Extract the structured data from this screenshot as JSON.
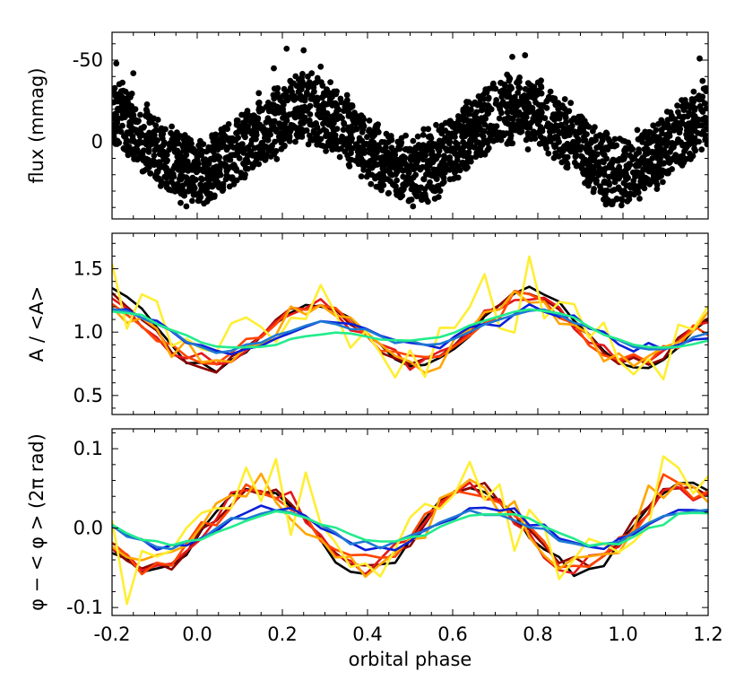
{
  "chart_data": [
    {
      "type": "scatter",
      "id": "flux",
      "ylabel": "flux (mmag)",
      "xlim": [
        -0.2,
        1.2
      ],
      "ylim": [
        -67,
        47
      ],
      "y_inverted": true,
      "yticks": [
        -50,
        0
      ],
      "ytick_labels": [
        "-50",
        "0"
      ],
      "model": {
        "description": "dense cloud of points following a double-wave (ellipsoidal-like) modulation",
        "mean_center_at_max": -20,
        "mean_center_at_min": 17,
        "maxima_phase": [
          0.25,
          0.75
        ],
        "band_half_width": 19,
        "outliers": [
          {
            "x": -0.19,
            "y": -48
          },
          {
            "x": 0.21,
            "y": -57
          },
          {
            "x": 0.25,
            "y": -56
          },
          {
            "x": 0.29,
            "y": -46
          },
          {
            "x": 0.74,
            "y": -52
          },
          {
            "x": 0.77,
            "y": -53
          },
          {
            "x": 1.18,
            "y": -51
          },
          {
            "x": -0.15,
            "y": -42
          },
          {
            "x": 0.18,
            "y": -45
          }
        ]
      }
    },
    {
      "type": "line",
      "id": "amplitude",
      "ylabel": "A / <A>",
      "xlim": [
        -0.2,
        1.2
      ],
      "ylim": [
        0.35,
        1.78
      ],
      "yticks": [
        0.5,
        1.0,
        1.5
      ],
      "ytick_labels": [
        "0.5",
        "1.0",
        "1.5"
      ],
      "series": [
        {
          "name": "black",
          "color": "#000000",
          "baseline": 1.0,
          "amp2": 0.28,
          "amp1": -0.05,
          "phase": 0.78,
          "noise": 0.02
        },
        {
          "name": "darkred",
          "color": "#8b0000",
          "baseline": 1.0,
          "amp2": 0.26,
          "amp1": -0.04,
          "phase": 0.77,
          "noise": 0.025
        },
        {
          "name": "red",
          "color": "#e31a1c",
          "baseline": 1.0,
          "amp2": 0.25,
          "amp1": -0.04,
          "phase": 0.77,
          "noise": 0.035
        },
        {
          "name": "orangered",
          "color": "#ff4500",
          "baseline": 1.0,
          "amp2": 0.24,
          "amp1": -0.04,
          "phase": 0.77,
          "noise": 0.045
        },
        {
          "name": "orange",
          "color": "#ffa500",
          "baseline": 1.0,
          "amp2": 0.23,
          "amp1": -0.04,
          "phase": 0.77,
          "noise": 0.06
        },
        {
          "name": "yellow",
          "color": "#ffee33",
          "baseline": 1.0,
          "amp2": 0.24,
          "amp1": -0.05,
          "phase": 0.77,
          "noise": 0.14
        },
        {
          "name": "blue",
          "color": "#0a1fd8",
          "baseline": 1.0,
          "amp2": 0.12,
          "amp1": -0.07,
          "phase": 0.8,
          "noise": 0.025
        },
        {
          "name": "cornflower",
          "color": "#1e78d4",
          "baseline": 1.0,
          "amp2": 0.12,
          "amp1": -0.06,
          "phase": 0.8,
          "noise": 0.015
        },
        {
          "name": "springgreen",
          "color": "#22ec8c",
          "baseline": 1.0,
          "amp2": 0.08,
          "amp1": -0.1,
          "phase": 0.8,
          "noise": 0.008
        }
      ]
    },
    {
      "type": "line",
      "id": "phase",
      "ylabel": "φ − < φ >  (2π rad)",
      "xlabel": "orbital phase",
      "xlim": [
        -0.2,
        1.2
      ],
      "ylim": [
        -0.11,
        0.125
      ],
      "yticks": [
        -0.1,
        0.0,
        0.1
      ],
      "ytick_labels": [
        "-0.1",
        "0.0",
        "0.1"
      ],
      "xticks": [
        -0.2,
        0.0,
        0.2,
        0.4,
        0.6,
        0.8,
        1.0,
        1.2
      ],
      "xtick_labels": [
        "-0.2",
        "0.0",
        "0.2",
        "0.4",
        "0.6",
        "0.8",
        "1.0",
        "1.2"
      ],
      "series": [
        {
          "name": "black",
          "color": "#000000",
          "amp": 0.056,
          "phase": 0.02,
          "noise": 0.004
        },
        {
          "name": "darkred",
          "color": "#8b0000",
          "amp": 0.05,
          "phase": 0.02,
          "noise": 0.005
        },
        {
          "name": "red",
          "color": "#e31a1c",
          "amp": 0.048,
          "phase": 0.02,
          "noise": 0.007
        },
        {
          "name": "orangered",
          "color": "#ff4500",
          "amp": 0.047,
          "phase": 0.02,
          "noise": 0.009
        },
        {
          "name": "orange",
          "color": "#ffa500",
          "amp": 0.047,
          "phase": 0.02,
          "noise": 0.012
        },
        {
          "name": "yellow",
          "color": "#ffee33",
          "amp": 0.05,
          "phase": 0.02,
          "noise": 0.03
        },
        {
          "name": "blue",
          "color": "#0a1fd8",
          "amp": 0.025,
          "phase": 0.05,
          "noise": 0.004
        },
        {
          "name": "cornflower",
          "color": "#1e78d4",
          "amp": 0.022,
          "phase": 0.05,
          "noise": 0.003
        },
        {
          "name": "springgreen",
          "color": "#22ec8c",
          "amp": 0.02,
          "phase": 0.07,
          "noise": 0.002
        }
      ]
    }
  ]
}
